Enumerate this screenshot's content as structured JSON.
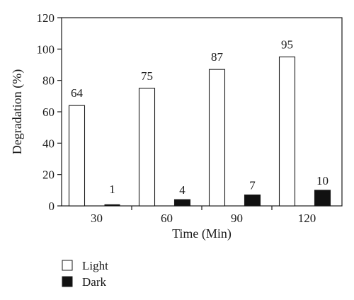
{
  "chart_data": {
    "type": "bar",
    "title": "",
    "xlabel": "Time (Min)",
    "ylabel": "Degradation (%)",
    "ylim": [
      0,
      120
    ],
    "yticks": [
      "0",
      "20",
      "40",
      "60",
      "80",
      "100",
      "120"
    ],
    "categories": [
      "30",
      "60",
      "90",
      "120"
    ],
    "series": [
      {
        "name": "Light",
        "values": [
          64,
          75,
          87,
          95
        ],
        "labels": [
          "64",
          "75",
          "87",
          "95"
        ],
        "color": "#ffffff"
      },
      {
        "name": "Dark",
        "values": [
          1,
          4,
          7,
          10
        ],
        "labels": [
          "1",
          "4",
          "7",
          "10"
        ],
        "color": "#111111"
      }
    ],
    "grid": false,
    "legend_position": "bottom-left",
    "frame": "box"
  }
}
